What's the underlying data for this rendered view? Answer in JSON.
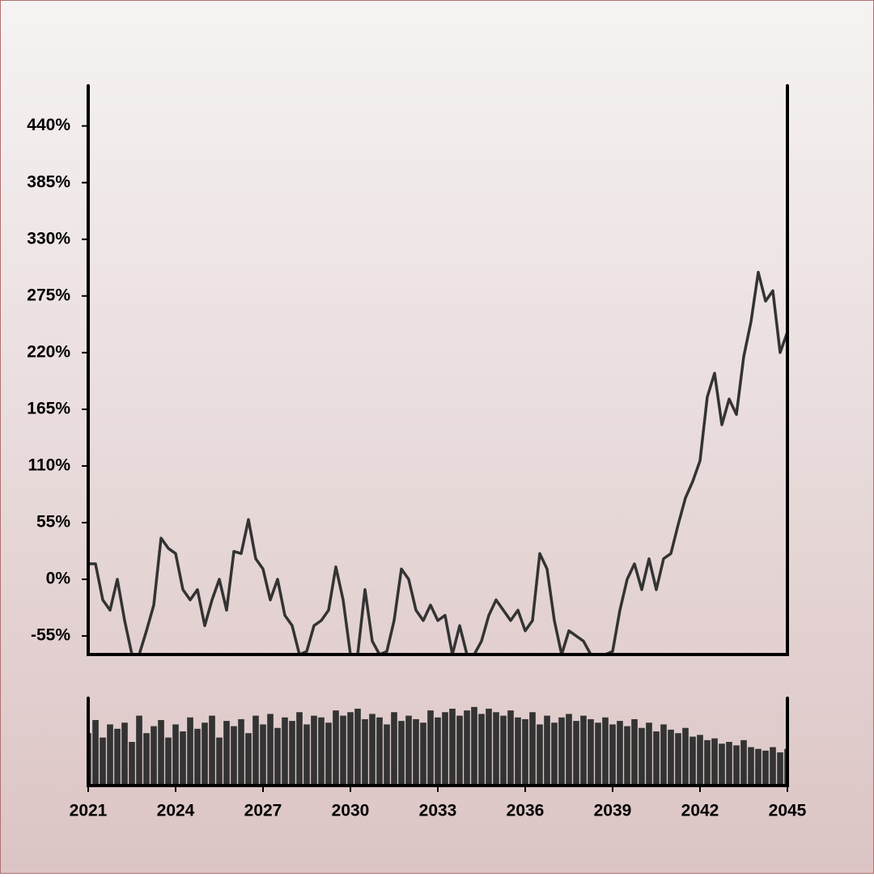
{
  "chart_data": [
    {
      "type": "line",
      "color": "#333333",
      "x": [
        2021,
        2021.25,
        2021.5,
        2021.75,
        2022,
        2022.25,
        2022.5,
        2022.75,
        2023,
        2023.25,
        2023.5,
        2023.75,
        2024,
        2024.25,
        2024.5,
        2024.75,
        2025,
        2025.25,
        2025.5,
        2025.75,
        2026,
        2026.25,
        2026.5,
        2026.75,
        2027,
        2027.25,
        2027.5,
        2027.75,
        2028,
        2028.25,
        2028.5,
        2028.75,
        2029,
        2029.25,
        2029.5,
        2029.75,
        2030,
        2030.25,
        2030.5,
        2030.75,
        2031,
        2031.25,
        2031.5,
        2031.75,
        2032,
        2032.25,
        2032.5,
        2032.75,
        2033,
        2033.25,
        2033.5,
        2033.75,
        2034,
        2034.25,
        2034.5,
        2034.75,
        2035,
        2035.25,
        2035.5,
        2035.75,
        2036,
        2036.25,
        2036.5,
        2036.75,
        2037,
        2037.25,
        2037.5,
        2037.75,
        2038,
        2038.25,
        2038.5,
        2038.75,
        2039,
        2039.25,
        2039.5,
        2039.75,
        2040,
        2040.25,
        2040.5,
        2040.75,
        2041,
        2041.25,
        2041.5,
        2041.75,
        2042,
        2042.25,
        2042.5,
        2042.75,
        2043,
        2043.25,
        2043.5,
        2043.75,
        2044,
        2044.25,
        2044.5,
        2044.75,
        2045
      ],
      "values": [
        15,
        15,
        -20,
        -30,
        0,
        -40,
        -73,
        -73,
        -50,
        -25,
        40,
        30,
        25,
        -10,
        -20,
        -10,
        -45,
        -20,
        0,
        -30,
        27,
        25,
        58,
        20,
        10,
        -20,
        0,
        -35,
        -45,
        -73,
        -70,
        -45,
        -40,
        -30,
        12,
        -20,
        -73,
        -73,
        -10,
        -60,
        -73,
        -70,
        -40,
        10,
        0,
        -30,
        -40,
        -25,
        -40,
        -35,
        -73,
        -45,
        -73,
        -73,
        -60,
        -35,
        -20,
        -30,
        -40,
        -30,
        -50,
        -40,
        25,
        10,
        -40,
        -73,
        -50,
        -55,
        -60,
        -73,
        -73,
        -73,
        -70,
        -30,
        0,
        15,
        -10,
        20,
        -10,
        20,
        25,
        53,
        79,
        95,
        115,
        177,
        200,
        150,
        175,
        160,
        216,
        250,
        298,
        270,
        280,
        220,
        240
      ],
      "xlim": [
        2021,
        2045
      ],
      "ylim": [
        -73,
        479
      ],
      "yticks": [
        {
          "value": -55,
          "label": "-55%"
        },
        {
          "value": 0,
          "label": "0%"
        },
        {
          "value": 55,
          "label": "55%"
        },
        {
          "value": 110,
          "label": "110%"
        },
        {
          "value": 165,
          "label": "165%"
        },
        {
          "value": 220,
          "label": "220%"
        },
        {
          "value": 275,
          "label": "275%"
        },
        {
          "value": 330,
          "label": "330%"
        },
        {
          "value": 385,
          "label": "385%"
        },
        {
          "value": 440,
          "label": "440%"
        }
      ]
    },
    {
      "type": "bar",
      "color": "#333333",
      "x": [
        2021,
        2021.25,
        2021.5,
        2021.75,
        2022,
        2022.25,
        2022.5,
        2022.75,
        2023,
        2023.25,
        2023.5,
        2023.75,
        2024,
        2024.25,
        2024.5,
        2024.75,
        2025,
        2025.25,
        2025.5,
        2025.75,
        2026,
        2026.25,
        2026.5,
        2026.75,
        2027,
        2027.25,
        2027.5,
        2027.75,
        2028,
        2028.25,
        2028.5,
        2028.75,
        2029,
        2029.25,
        2029.5,
        2029.75,
        2030,
        2030.25,
        2030.5,
        2030.75,
        2031,
        2031.25,
        2031.5,
        2031.75,
        2032,
        2032.25,
        2032.5,
        2032.75,
        2033,
        2033.25,
        2033.5,
        2033.75,
        2034,
        2034.25,
        2034.5,
        2034.75,
        2035,
        2035.25,
        2035.5,
        2035.75,
        2036,
        2036.25,
        2036.5,
        2036.75,
        2037,
        2037.25,
        2037.5,
        2037.75,
        2038,
        2038.25,
        2038.5,
        2038.75,
        2039,
        2039.25,
        2039.5,
        2039.75,
        2040,
        2040.25,
        2040.5,
        2040.75,
        2041,
        2041.25,
        2041.5,
        2041.75,
        2042,
        2042.25,
        2042.5,
        2042.75,
        2043,
        2043.25,
        2043.5,
        2043.75,
        2044,
        2044.25,
        2044.5,
        2044.75,
        2045
      ],
      "values": [
        60,
        75,
        55,
        70,
        65,
        72,
        50,
        80,
        60,
        68,
        75,
        55,
        70,
        62,
        78,
        65,
        72,
        80,
        55,
        74,
        68,
        76,
        60,
        80,
        70,
        82,
        66,
        78,
        74,
        84,
        70,
        80,
        78,
        72,
        86,
        80,
        84,
        88,
        76,
        82,
        78,
        70,
        84,
        74,
        80,
        76,
        72,
        86,
        78,
        84,
        88,
        80,
        86,
        90,
        82,
        88,
        84,
        80,
        86,
        78,
        76,
        84,
        70,
        80,
        72,
        78,
        82,
        74,
        80,
        76,
        72,
        78,
        70,
        74,
        68,
        76,
        66,
        72,
        62,
        70,
        64,
        60,
        66,
        56,
        58,
        52,
        54,
        48,
        50,
        46,
        52,
        44,
        42,
        40,
        44,
        38,
        42
      ],
      "xlim": [
        2021,
        2045
      ],
      "ylim": [
        0,
        100
      ],
      "xticks": [
        2021,
        2024,
        2027,
        2030,
        2033,
        2036,
        2039,
        2042,
        2045
      ]
    }
  ]
}
